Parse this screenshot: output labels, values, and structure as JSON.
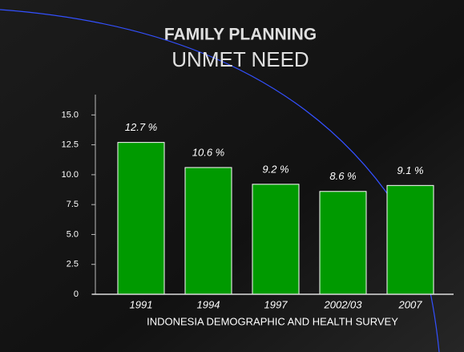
{
  "chart_data": {
    "type": "bar",
    "title": "FAMILY PLANNING",
    "subtitle": "UNMET NEED",
    "x_label": "INDONESIA DEMOGRAPHIC AND HEALTH SURVEY",
    "categories": [
      "1991",
      "1994",
      "1997",
      "2002/03",
      "2007"
    ],
    "values": [
      12.7,
      10.6,
      9.2,
      8.6,
      9.1
    ],
    "value_labels": [
      "12.7 %",
      "10.6 %",
      "9.2 %",
      "8.6 %",
      "9.1 %"
    ],
    "color": "#009a00",
    "ylim": [
      0,
      16.7
    ],
    "yticks": [
      0,
      2.5,
      {
        "value": 5,
        "label": "5.0"
      },
      7.5,
      {
        "value": 10,
        "label": "10.0"
      },
      12.5,
      {
        "value": 15,
        "label": "15.0"
      }
    ]
  }
}
